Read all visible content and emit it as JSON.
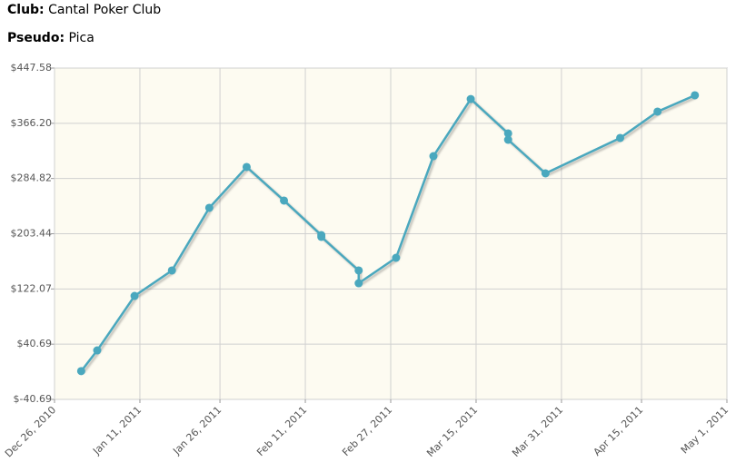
{
  "header": {
    "club_label": "Club:",
    "club": "Cantal Poker Club",
    "pseudo_label": "Pseudo:",
    "pseudo": "Pica"
  },
  "chart_data": {
    "type": "line",
    "x": [
      "2010-12-31",
      "2011-01-03",
      "2011-01-10",
      "2011-01-17",
      "2011-01-24",
      "2011-01-31",
      "2011-02-07",
      "2011-02-14",
      "2011-02-14",
      "2011-02-21",
      "2011-02-21",
      "2011-02-28",
      "2011-03-07",
      "2011-03-14",
      "2011-03-21",
      "2011-03-21",
      "2011-03-28",
      "2011-04-11",
      "2011-04-18",
      "2011-04-25"
    ],
    "values": [
      1,
      31.5,
      111.8,
      149.3,
      241.6,
      301.8,
      252.3,
      201.4,
      198.8,
      149.3,
      130.5,
      168,
      317.8,
      402,
      351.3,
      341.9,
      292.4,
      344.6,
      383.4,
      407.5
    ],
    "color": "#4aa8be",
    "xlim": [
      "2010-12-26",
      "2011-05-01"
    ],
    "xticks": [
      {
        "value": "2010-12-26",
        "label": "Dec 26, 2010"
      },
      {
        "value": "2011-01-11",
        "label": "Jan 11, 2011"
      },
      {
        "value": "2011-01-26",
        "label": "Jan 26, 2011"
      },
      {
        "value": "2011-02-11",
        "label": "Feb 11, 2011"
      },
      {
        "value": "2011-02-27",
        "label": "Feb 27, 2011"
      },
      {
        "value": "2011-03-15",
        "label": "Mar 15, 2011"
      },
      {
        "value": "2011-03-31",
        "label": "Mar 31, 2011"
      },
      {
        "value": "2011-04-15",
        "label": "Apr 15, 2011"
      },
      {
        "value": "2011-05-01",
        "label": "May 1, 2011"
      }
    ],
    "ylim": [
      -40.69,
      447.58
    ],
    "yticks": [
      {
        "value": -40.69,
        "label": "$-40.69"
      },
      {
        "value": 40.69,
        "label": "$40.69"
      },
      {
        "value": 122.07,
        "label": "$122.07"
      },
      {
        "value": 203.44,
        "label": "$203.44"
      },
      {
        "value": 284.82,
        "label": "$284.82"
      },
      {
        "value": 366.2,
        "label": "$366.20"
      },
      {
        "value": 447.58,
        "label": "$447.58"
      }
    ],
    "grid": true
  }
}
